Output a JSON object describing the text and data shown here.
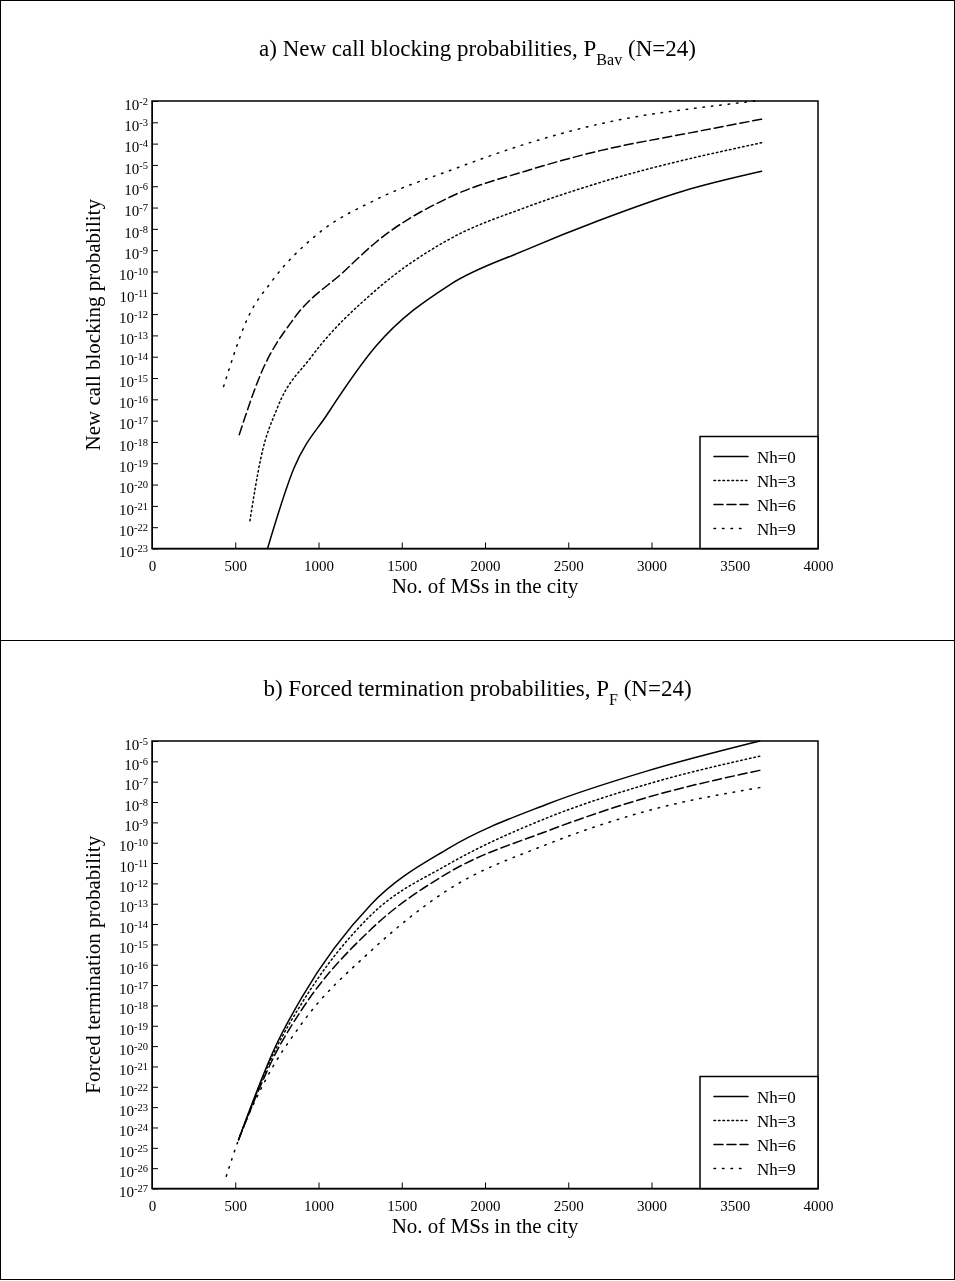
{
  "chart_data": [
    {
      "type": "line",
      "title": "a) New call blocking probabilities, P$_{Bav}$ (N=24)",
      "xlabel": "No. of MSs in the city",
      "ylabel": "New call blocking probability",
      "log": "y",
      "legend": "bottom right",
      "xlim": [
        0,
        4000
      ],
      "xticks": [
        0,
        500,
        1000,
        1500,
        2000,
        2500,
        3000,
        3500,
        4000
      ],
      "ylim": [
        1e-23,
        0.01
      ],
      "yticks": [
        {
          "value": 0.01,
          "label": "10$^{-2}$"
        },
        {
          "value": 0.001,
          "label": "10$^{-3}$"
        },
        {
          "value": 0.0001,
          "label": "10$^{-4}$"
        },
        {
          "value": 1e-05,
          "label": "10$^{-5}$"
        },
        {
          "value": 1e-06,
          "label": "10$^{-6}$"
        },
        {
          "value": 1e-07,
          "label": "10$^{-7}$"
        },
        {
          "value": 1e-08,
          "label": "10$^{-8}$"
        },
        {
          "value": 1e-09,
          "label": "10$^{-9}$"
        },
        {
          "value": 1e-10,
          "label": "10$^{-10}$"
        },
        {
          "value": 1e-11,
          "label": "10$^{-11}$"
        },
        {
          "value": 1e-12,
          "label": "10$^{-12}$"
        },
        {
          "value": 1e-13,
          "label": "10$^{-13}$"
        },
        {
          "value": 1e-14,
          "label": "10$^{-14}$"
        },
        {
          "value": 1e-15,
          "label": "10$^{-15}$"
        },
        {
          "value": 1e-16,
          "label": "10$^{-16}$"
        },
        {
          "value": 1e-17,
          "label": "10$^{-17}$"
        },
        {
          "value": 1e-18,
          "label": "10$^{-18}$"
        },
        {
          "value": 1e-19,
          "label": "10$^{-19}$"
        },
        {
          "value": 1e-20,
          "label": "10$^{-20}$"
        },
        {
          "value": 1e-21,
          "label": "10$^{-21}$"
        },
        {
          "value": 1e-22,
          "label": "10$^{-22}$"
        },
        {
          "value": 1e-23,
          "label": "10$^{-23}$"
        }
      ],
      "series": [
        {
          "name": "Nh=0",
          "color": "#000000",
          "line_style": "solid",
          "x": [
            694,
            853,
            1053,
            1343,
            1793,
            2242,
            2692,
            3192,
            3661
          ],
          "values": [
            1e-23,
            6e-20,
            2e-17,
            3e-14,
            2.5e-11,
            1e-09,
            2.6e-08,
            6e-07,
            5e-06
          ]
        },
        {
          "name": "Nh=3",
          "color": "#000000",
          "line_style": "dotted",
          "x": [
            588,
            654,
            753,
            953,
            1343,
            1793,
            2242,
            2692,
            3661
          ],
          "values": [
            2e-22,
            1.8e-19,
            4e-17,
            9e-15,
            1.3e-11,
            3.5e-09,
            1e-07,
            1.5e-06,
            0.00011
          ]
        },
        {
          "name": "Nh=6",
          "color": "#000000",
          "line_style": "dashed",
          "x": [
            524,
            654,
            853,
            1153,
            1343,
            1793,
            2242,
            2692,
            3192,
            3661
          ],
          "values": [
            2.2e-18,
            1.6e-15,
            6.3e-13,
            1e-10,
            2.3e-09,
            3.2e-07,
            5.1e-06,
            4.7e-05,
            0.00028,
            0.0014
          ]
        },
        {
          "name": "Nh=9",
          "color": "#000000",
          "line_style": "dotted",
          "x": [
            430,
            574,
            720,
            993,
            1343,
            1793,
            2242,
            2692,
            3453,
            3620
          ],
          "values": [
            4e-16,
            6.3e-13,
            3.5e-11,
            5.6e-09,
            2.3e-07,
            5.6e-06,
            9.5e-05,
            0.00085,
            0.007,
            0.01
          ]
        }
      ]
    },
    {
      "type": "line",
      "title": "b) Forced termination probabilities, P$_{F}$ (N=24)",
      "xlabel": "No. of MSs in the city",
      "ylabel": "Forced termination probability",
      "log": "y",
      "legend": "bottom right",
      "xlim": [
        0,
        4000
      ],
      "xticks": [
        0,
        500,
        1000,
        1500,
        2000,
        2500,
        3000,
        3500,
        4000
      ],
      "ylim": [
        1e-27,
        1e-05
      ],
      "yticks": [
        {
          "value": 1e-05,
          "label": "10$^{-5}$"
        },
        {
          "value": 1e-06,
          "label": "10$^{-6}$"
        },
        {
          "value": 1e-07,
          "label": "10$^{-7}$"
        },
        {
          "value": 1e-08,
          "label": "10$^{-8}$"
        },
        {
          "value": 1e-09,
          "label": "10$^{-9}$"
        },
        {
          "value": 1e-10,
          "label": "10$^{-10}$"
        },
        {
          "value": 1e-11,
          "label": "10$^{-11}$"
        },
        {
          "value": 1e-12,
          "label": "10$^{-12}$"
        },
        {
          "value": 1e-13,
          "label": "10$^{-13}$"
        },
        {
          "value": 1e-14,
          "label": "10$^{-14}$"
        },
        {
          "value": 1e-15,
          "label": "10$^{-15}$"
        },
        {
          "value": 1e-16,
          "label": "10$^{-16}$"
        },
        {
          "value": 1e-17,
          "label": "10$^{-17}$"
        },
        {
          "value": 1e-18,
          "label": "10$^{-18}$"
        },
        {
          "value": 1e-19,
          "label": "10$^{-19}$"
        },
        {
          "value": 1e-20,
          "label": "10$^{-20}$"
        },
        {
          "value": 1e-21,
          "label": "10$^{-21}$"
        },
        {
          "value": 1e-22,
          "label": "10$^{-22}$"
        },
        {
          "value": 1e-23,
          "label": "10$^{-23}$"
        },
        {
          "value": 1e-24,
          "label": "10$^{-24}$"
        },
        {
          "value": 1e-25,
          "label": "10$^{-25}$"
        },
        {
          "value": 1e-26,
          "label": "10$^{-26}$"
        },
        {
          "value": 1e-27,
          "label": "10$^{-27}$"
        }
      ],
      "series": [
        {
          "name": "Nh=0",
          "color": "#000000",
          "line_style": "solid",
          "x": [
            520,
            740,
            900,
            1314,
            1776,
            2376,
            2976,
            3650
          ],
          "values": [
            2.5e-25,
            9e-21,
            2.5e-18,
            9e-14,
            5e-11,
            8e-09,
            3.4e-07,
            1e-05
          ]
        },
        {
          "name": "Nh=3",
          "color": "#000000",
          "line_style": "dotted",
          "x": [
            520,
            740,
            900,
            1314,
            1776,
            2376,
            2976,
            3650
          ],
          "values": [
            2.5e-25,
            6.3e-21,
            1.3e-18,
            2.7e-14,
            8.3e-12,
            1.7e-09,
            7.6e-08,
            1.8e-06
          ]
        },
        {
          "name": "Nh=6",
          "color": "#000000",
          "line_style": "dashed",
          "x": [
            520,
            740,
            900,
            1314,
            1776,
            2376,
            2976,
            3650
          ],
          "values": [
            2.5e-25,
            4e-21,
            6.3e-19,
            5.4e-15,
            3.2e-12,
            3.8e-10,
            1.7e-08,
            3.6e-07
          ]
        },
        {
          "name": "Nh=9",
          "color": "#000000",
          "line_style": "dotted",
          "x": [
            446,
            520,
            680,
            900,
            1314,
            1776,
            2376,
            2976,
            3650
          ],
          "values": [
            4e-27,
            2.5e-25,
            2e-22,
            1.3e-19,
            4.7e-16,
            4.7e-13,
            8.5e-11,
            3.7e-09,
            5.1e-08
          ]
        }
      ]
    }
  ]
}
